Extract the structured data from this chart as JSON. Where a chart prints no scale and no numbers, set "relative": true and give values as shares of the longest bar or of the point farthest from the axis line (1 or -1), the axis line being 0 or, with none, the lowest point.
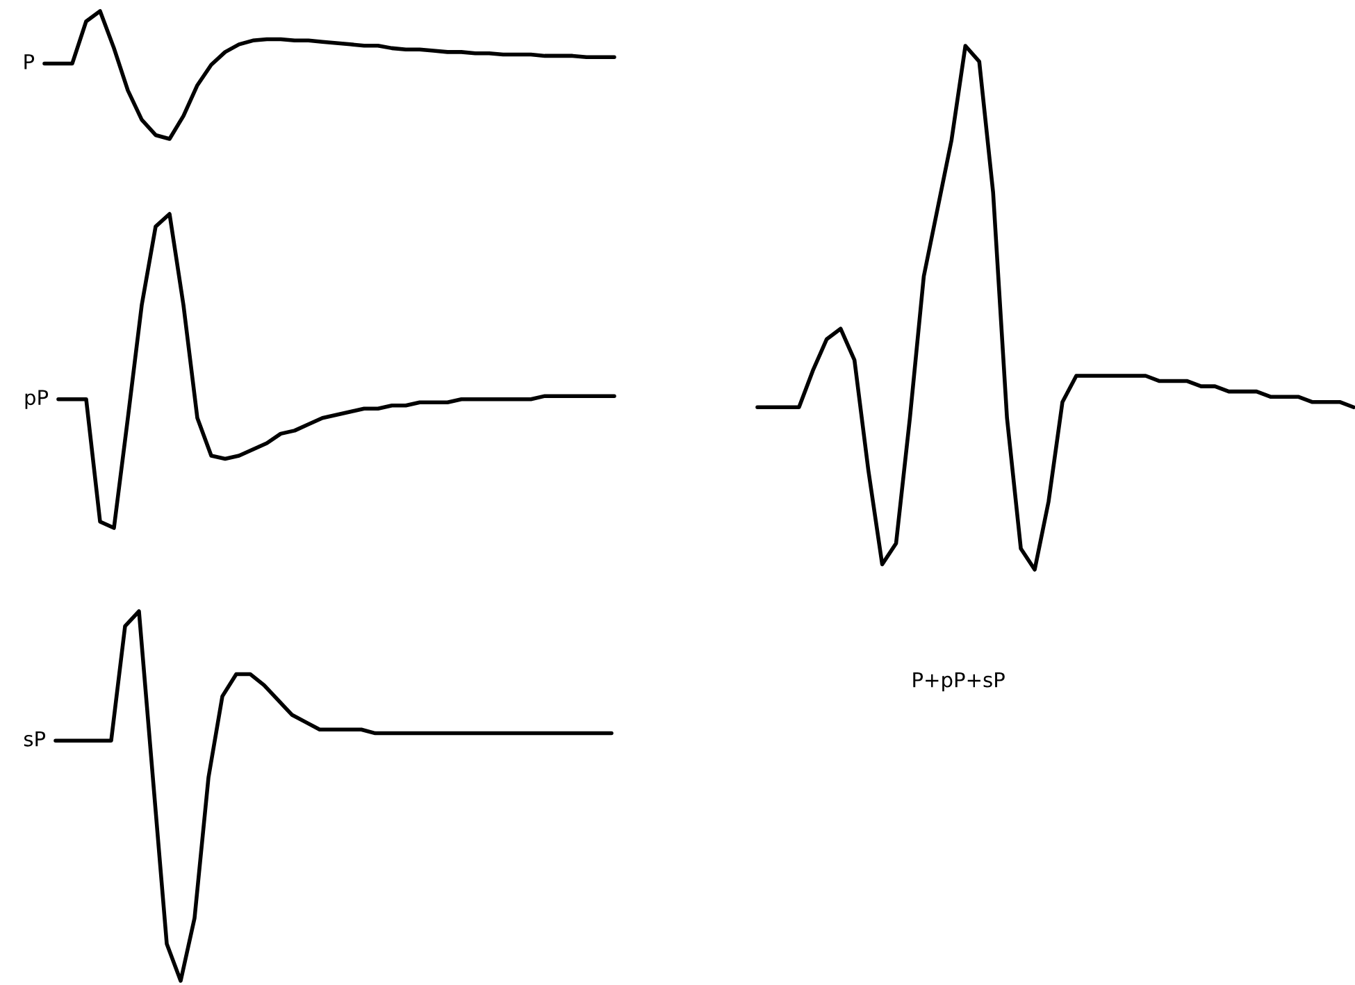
{
  "chart_data": [
    {
      "type": "line",
      "relative": true,
      "categories": [
        null,
        null,
        null,
        null,
        null,
        null,
        null,
        null,
        null,
        null,
        null,
        null,
        null,
        null,
        null,
        null,
        null,
        null,
        null,
        null,
        null,
        null,
        null,
        null,
        null,
        null,
        null,
        null,
        null,
        null,
        null,
        null,
        null,
        null,
        null,
        null,
        null,
        null,
        null,
        null,
        null,
        null
      ],
      "series": [
        {
          "name": "P",
          "color": "#000000",
          "values": [
            0.59,
            0.59,
            0.59,
            0.92,
            1,
            0.71,
            0.38,
            0.15,
            0.03,
            0,
            0.18,
            0.42,
            0.58,
            0.68,
            0.74,
            0.77,
            0.78,
            0.78,
            0.77,
            0.77,
            0.76,
            0.75,
            0.74,
            0.73,
            0.73,
            0.71,
            0.7,
            0.7,
            0.69,
            0.68,
            0.68,
            0.67,
            0.67,
            0.66,
            0.66,
            0.66,
            0.65,
            0.65,
            0.65,
            0.64,
            0.64,
            0.64
          ]
        }
      ]
    },
    {
      "type": "line",
      "relative": true,
      "categories": [
        null,
        null,
        null,
        null,
        null,
        null,
        null,
        null,
        null,
        null,
        null,
        null,
        null,
        null,
        null,
        null,
        null,
        null,
        null,
        null,
        null,
        null,
        null,
        null,
        null,
        null,
        null,
        null,
        null,
        null,
        null,
        null,
        null,
        null,
        null,
        null,
        null,
        null,
        null,
        null,
        null
      ],
      "series": [
        {
          "name": "pP",
          "color": "#000000",
          "values": [
            0.41,
            0.41,
            0.41,
            0.02,
            0,
            0.35,
            0.71,
            0.96,
            1,
            0.71,
            0.35,
            0.23,
            0.22,
            0.23,
            0.25,
            0.27,
            0.3,
            0.31,
            0.33,
            0.35,
            0.36,
            0.37,
            0.38,
            0.38,
            0.39,
            0.39,
            0.4,
            0.4,
            0.4,
            0.41,
            0.41,
            0.41,
            0.41,
            0.41,
            0.41,
            0.42,
            0.42,
            0.42,
            0.42,
            0.42,
            0.42
          ]
        }
      ]
    },
    {
      "type": "line",
      "relative": true,
      "categories": [
        null,
        null,
        null,
        null,
        null,
        null,
        null,
        null,
        null,
        null,
        null,
        null,
        null,
        null,
        null,
        null,
        null,
        null,
        null,
        null,
        null,
        null,
        null,
        null,
        null,
        null,
        null,
        null,
        null,
        null,
        null,
        null,
        null,
        null,
        null,
        null,
        null,
        null,
        null,
        null,
        null
      ],
      "series": [
        {
          "name": "sP",
          "color": "#000000",
          "values": [
            0.65,
            0.65,
            0.65,
            0.65,
            0.65,
            0.96,
            1,
            0.55,
            0.1,
            0,
            0.17,
            0.55,
            0.77,
            0.83,
            0.83,
            0.8,
            0.76,
            0.72,
            0.7,
            0.68,
            0.68,
            0.68,
            0.68,
            0.67,
            0.67,
            0.67,
            0.67,
            0.67,
            0.67,
            0.67,
            0.67,
            0.67,
            0.67,
            0.67,
            0.67,
            0.67,
            0.67,
            0.67,
            0.67,
            0.67,
            0.67
          ]
        }
      ]
    },
    {
      "type": "line",
      "relative": true,
      "title": "P+pP+sP",
      "categories": [
        null,
        null,
        null,
        null,
        null,
        null,
        null,
        null,
        null,
        null,
        null,
        null,
        null,
        null,
        null,
        null,
        null,
        null,
        null,
        null,
        null,
        null,
        null,
        null,
        null,
        null,
        null,
        null,
        null,
        null,
        null,
        null,
        null,
        null,
        null,
        null,
        null,
        null,
        null,
        null,
        null,
        null,
        null,
        null
      ],
      "series": [
        {
          "color": "#000000",
          "values": [
            0.31,
            0.31,
            0.31,
            0.31,
            0.38,
            0.44,
            0.46,
            0.4,
            0.19,
            0.01,
            0.05,
            0.29,
            0.56,
            0.69,
            0.82,
            1,
            0.97,
            0.72,
            0.29,
            0.04,
            0,
            0.13,
            0.32,
            0.37,
            0.37,
            0.37,
            0.37,
            0.37,
            0.37,
            0.36,
            0.36,
            0.36,
            0.35,
            0.35,
            0.34,
            0.34,
            0.34,
            0.33,
            0.33,
            0.33,
            0.32,
            0.32,
            0.32,
            0.31
          ]
        }
      ]
    }
  ]
}
